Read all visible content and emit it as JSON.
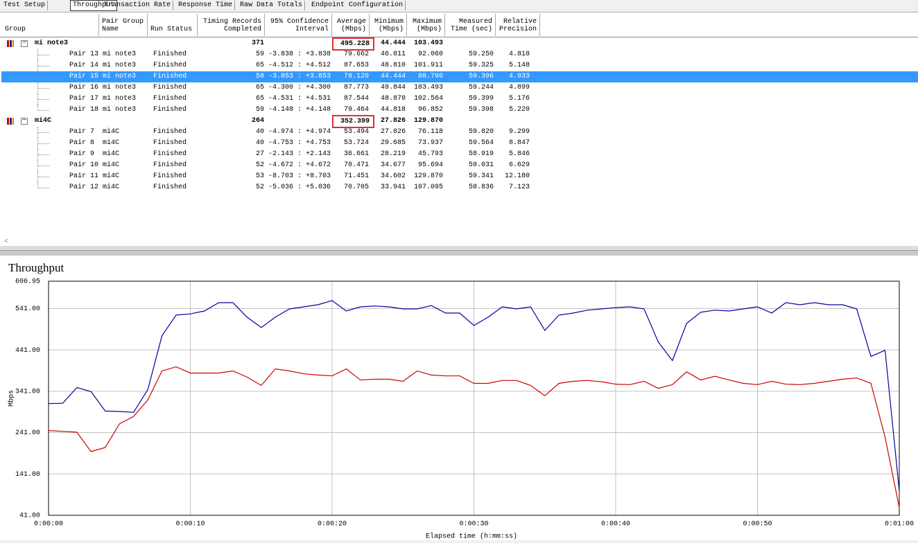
{
  "tabs": [
    "Test Setup",
    "Throughput",
    "Transaction Rate",
    "Response Time",
    "Raw Data Totals",
    "Endpoint Configuration"
  ],
  "table": {
    "columns": [
      [
        "Group"
      ],
      [
        "Pair Group",
        "Name"
      ],
      [
        "Run Status"
      ],
      [
        "Timing Records",
        "Completed"
      ],
      [
        "95% Confidence",
        "Interval"
      ],
      [
        "Average",
        "(Mbps)"
      ],
      [
        "Minimum",
        "(Mbps)"
      ],
      [
        "Maximum",
        "(Mbps)"
      ],
      [
        "Measured",
        "Time (sec)"
      ],
      [
        "Relative",
        "Precision"
      ]
    ],
    "groups": [
      {
        "name": "mi note3",
        "records": "371",
        "average": "495.228",
        "minimum": "44.444",
        "maximum": "103.493",
        "pairs": [
          [
            "Pair 13",
            "mi note3",
            "Finished",
            "59",
            "-3.838 : +3.838",
            "79.662",
            "46.811",
            "92.060",
            "59.250",
            "4.818"
          ],
          [
            "Pair 14",
            "mi note3",
            "Finished",
            "65",
            "-4.512 : +4.512",
            "87.653",
            "48.810",
            "101.911",
            "59.325",
            "5.148"
          ],
          [
            "Pair 15",
            "mi note3",
            "Finished",
            "58",
            "-3.853 : +3.853",
            "78.120",
            "44.444",
            "88.790",
            "59.396",
            "4.933"
          ],
          [
            "Pair 16",
            "mi note3",
            "Finished",
            "65",
            "-4.300 : +4.300",
            "87.773",
            "49.844",
            "103.493",
            "59.244",
            "4.899"
          ],
          [
            "Pair 17",
            "mi note3",
            "Finished",
            "65",
            "-4.531 : +4.531",
            "87.544",
            "48.870",
            "102.564",
            "59.399",
            "5.176"
          ],
          [
            "Pair 18",
            "mi note3",
            "Finished",
            "59",
            "-4.148 : +4.148",
            "79.464",
            "44.818",
            "96.852",
            "59.398",
            "5.220"
          ]
        ]
      },
      {
        "name": "mi4C",
        "records": "264",
        "average": "352.399",
        "minimum": "27.826",
        "maximum": "129.870",
        "pairs": [
          [
            "Pair 7",
            "mi4C",
            "Finished",
            "40",
            "-4.974 : +4.974",
            "53.494",
            "27.826",
            "76.118",
            "59.820",
            "9.299"
          ],
          [
            "Pair 8",
            "mi4C",
            "Finished",
            "40",
            "-4.753 : +4.753",
            "53.724",
            "29.685",
            "73.937",
            "59.564",
            "8.847"
          ],
          [
            "Pair 9",
            "mi4C",
            "Finished",
            "27",
            "-2.143 : +2.143",
            "36.661",
            "28.219",
            "45.793",
            "58.919",
            "5.846"
          ],
          [
            "Pair 10",
            "mi4C",
            "Finished",
            "52",
            "-4.672 : +4.672",
            "70.471",
            "34.677",
            "95.694",
            "59.031",
            "6.629"
          ],
          [
            "Pair 11",
            "mi4C",
            "Finished",
            "53",
            "-8.703 : +8.703",
            "71.451",
            "34.602",
            "129.870",
            "59.341",
            "12.180"
          ],
          [
            "Pair 12",
            "mi4C",
            "Finished",
            "52",
            "-5.036 : +5.036",
            "70.705",
            "33.941",
            "107.095",
            "58.836",
            "7.123"
          ]
        ]
      }
    ]
  },
  "chart_data": {
    "type": "line",
    "title": "Throughput",
    "x_label": "Elapsed time (h:mm:ss)",
    "y_label": "Mbps",
    "x": [
      0,
      1,
      2,
      3,
      4,
      5,
      6,
      7,
      8,
      9,
      10,
      11,
      12,
      13,
      14,
      15,
      16,
      17,
      18,
      19,
      20,
      21,
      22,
      23,
      24,
      25,
      26,
      27,
      28,
      29,
      30,
      31,
      32,
      33,
      34,
      35,
      36,
      37,
      38,
      39,
      40,
      41,
      42,
      43,
      44,
      45,
      46,
      47,
      48,
      49,
      50,
      51,
      52,
      53,
      54,
      55,
      56,
      57,
      58,
      59,
      60
    ],
    "series": [
      {
        "color": "#0000a0",
        "values": [
          311,
          312,
          350,
          340,
          293,
          292,
          290,
          345,
          475,
          525,
          528,
          535,
          555,
          555,
          520,
          495,
          520,
          540,
          545,
          550,
          560,
          535,
          545,
          547,
          545,
          540,
          540,
          548,
          530,
          530,
          500,
          520,
          545,
          540,
          545,
          488,
          525,
          530,
          537,
          540,
          543,
          545,
          540,
          460,
          415,
          505,
          532,
          537,
          535,
          540,
          545,
          530,
          555,
          550,
          555,
          550,
          550,
          540,
          425,
          440,
          100
        ]
      },
      {
        "color": "#d00000",
        "values": [
          246,
          244,
          242,
          195,
          205,
          262,
          280,
          320,
          390,
          400,
          385,
          385,
          385,
          390,
          375,
          355,
          395,
          390,
          383,
          380,
          378,
          395,
          368,
          370,
          370,
          365,
          390,
          380,
          378,
          378,
          360,
          360,
          367,
          367,
          355,
          330,
          360,
          365,
          367,
          364,
          358,
          357,
          365,
          348,
          357,
          388,
          368,
          377,
          368,
          360,
          357,
          365,
          358,
          357,
          360,
          365,
          370,
          373,
          360,
          230,
          60
        ]
      }
    ],
    "xlim": [
      0,
      60
    ],
    "xticks": [
      {
        "value": 0,
        "label": "0:00:00"
      },
      {
        "value": 10,
        "label": "0:00:10"
      },
      {
        "value": 20,
        "label": "0:00:20"
      },
      {
        "value": 30,
        "label": "0:00:30"
      },
      {
        "value": 40,
        "label": "0:00:40"
      },
      {
        "value": 50,
        "label": "0:00:50"
      },
      {
        "value": 60,
        "label": "0:01:00"
      }
    ],
    "ylim": [
      41,
      606.95
    ],
    "yticks": [
      {
        "value": 41,
        "label": "41.00"
      },
      {
        "value": 141,
        "label": "141.00"
      },
      {
        "value": 241,
        "label": "241.00"
      },
      {
        "value": 341,
        "label": "341.00"
      },
      {
        "value": 441,
        "label": "441.00"
      },
      {
        "value": 541,
        "label": "541.00"
      },
      606.95
    ],
    "grid": true
  }
}
